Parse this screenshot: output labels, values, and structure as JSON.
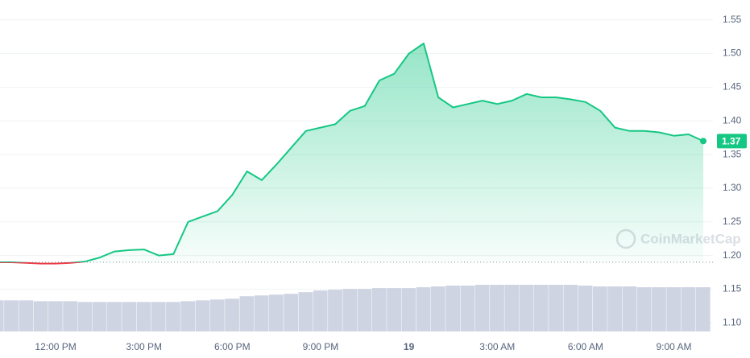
{
  "chart_data": {
    "type": "line",
    "categories": [
      null,
      null,
      null,
      null,
      "12:00 PM",
      null,
      null,
      null,
      null,
      null,
      "3:00 PM",
      null,
      null,
      null,
      null,
      null,
      "6:00 PM",
      null,
      null,
      null,
      null,
      null,
      "9:00 PM",
      null,
      null,
      null,
      null,
      null,
      "19",
      null,
      null,
      null,
      null,
      null,
      "3:00 AM",
      null,
      null,
      null,
      null,
      null,
      "6:00 AM",
      null,
      null,
      null,
      null,
      null,
      "9:00 AM",
      null,
      null
    ],
    "series": [
      {
        "color": "#16c784",
        "values": [
          1.19,
          1.19,
          1.189,
          1.188,
          1.188,
          1.189,
          1.191,
          1.197,
          1.206,
          1.208,
          1.209,
          1.2,
          1.202,
          1.25,
          1.258,
          1.266,
          1.29,
          1.325,
          1.312,
          1.335,
          1.36,
          1.385,
          1.39,
          1.395,
          1.415,
          1.422,
          1.46,
          1.47,
          1.5,
          1.515,
          1.435,
          1.42,
          1.425,
          1.43,
          1.425,
          1.43,
          1.44,
          1.435,
          1.435,
          1.432,
          1.428,
          1.415,
          1.39,
          1.385,
          1.385,
          1.383,
          1.378,
          1.38,
          1.37
        ]
      }
    ],
    "volume": [
      38,
      38,
      38,
      37,
      37,
      37,
      36,
      36,
      36,
      36,
      36,
      36,
      36,
      37,
      38,
      39,
      40,
      43,
      44,
      45,
      46,
      48,
      50,
      51,
      52,
      52,
      53,
      53,
      53,
      54,
      55,
      56,
      56,
      57,
      57,
      57,
      57,
      57,
      57,
      57,
      56,
      55,
      55,
      55,
      54,
      54,
      54,
      54,
      54
    ],
    "volume_color": "#cfd4e3",
    "below_color": "#ea3943",
    "baseline": 1.19,
    "ylim": [
      1.08,
      1.57
    ],
    "yticks": [
      {
        "value": 1.1,
        "label": "1.10"
      },
      1.15,
      {
        "value": 1.2,
        "label": "1.20"
      },
      1.25,
      {
        "value": 1.3,
        "label": "1.30"
      },
      1.35,
      {
        "value": 1.4,
        "label": "1.40"
      },
      1.45,
      {
        "value": 1.5,
        "label": "1.50"
      },
      1.55
    ],
    "grid": true,
    "watermark": "CoinMarketCap"
  }
}
